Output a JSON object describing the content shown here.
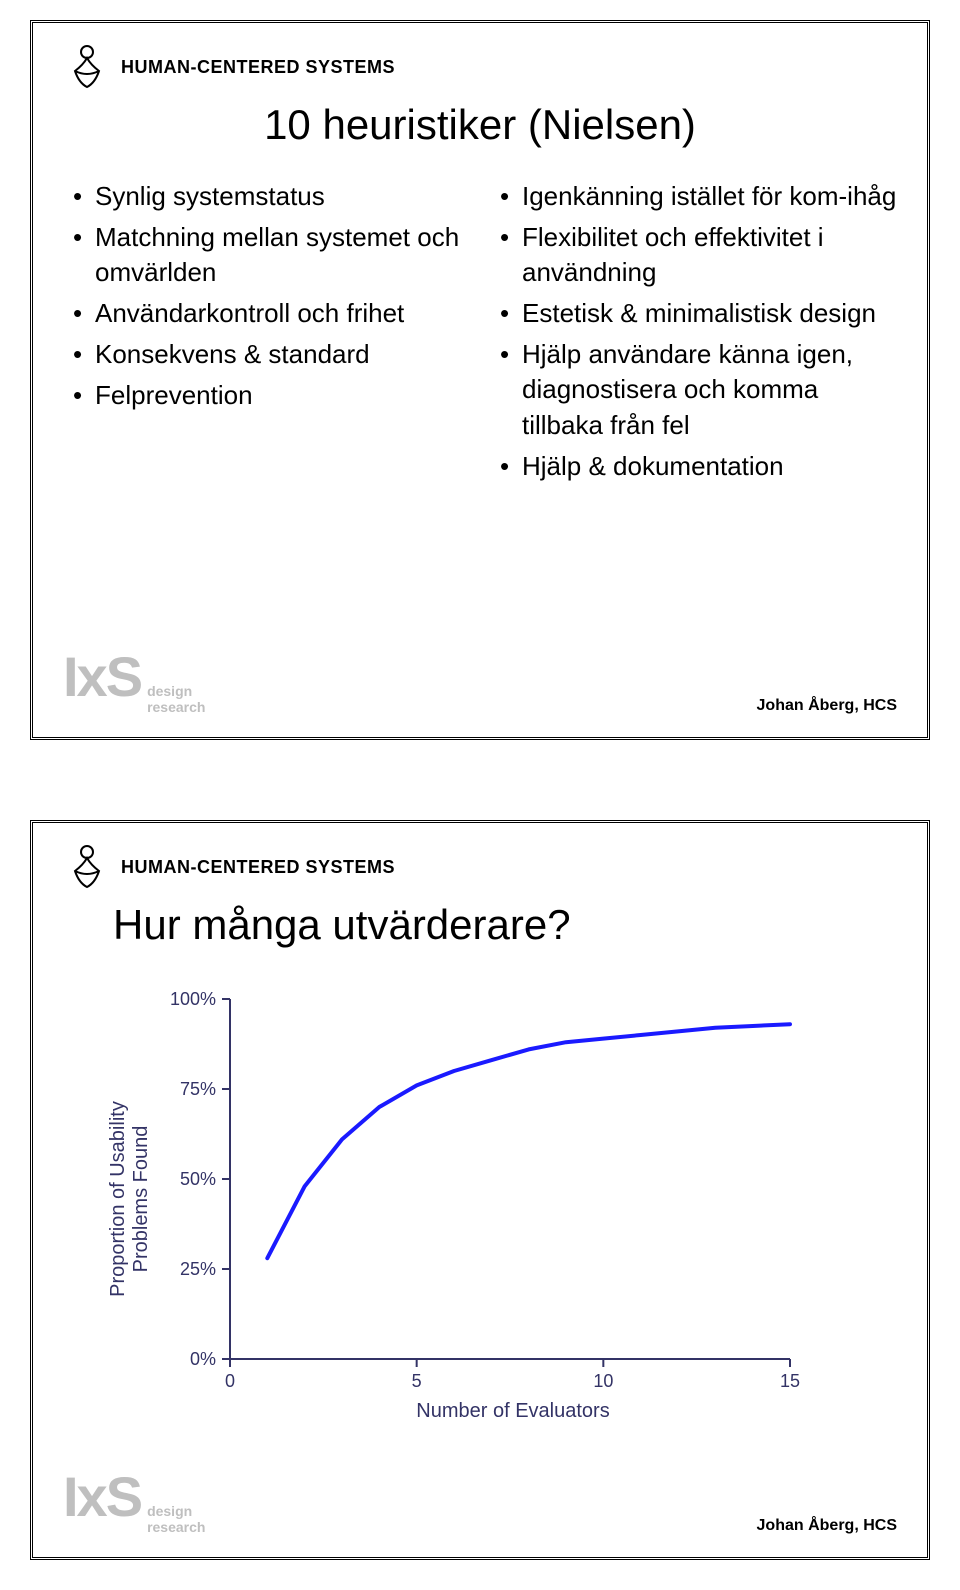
{
  "header_label": "HUMAN-CENTERED SYSTEMS",
  "footer": {
    "ixs": "IxS",
    "sub1": "design",
    "sub2": "research",
    "author": "Johan Åberg, HCS"
  },
  "slide1": {
    "title": "10 heuristiker (Nielsen)",
    "left_bullets": [
      "Synlig systemstatus",
      "Matchning mellan systemet och omvärlden",
      "Användarkontroll och frihet",
      "Konsekvens & standard",
      "Felprevention"
    ],
    "right_bullets": [
      "Igenkänning istället för kom-ihåg",
      "Flexibilitet och effektivitet i användning",
      "Estetisk & minimalistisk design",
      "Hjälp användare känna igen, diagnostisera och komma tillbaka från fel",
      "Hjälp & dokumentation"
    ]
  },
  "slide2": {
    "title": "Hur många utvärderare?",
    "chart": {
      "type": "line",
      "x_label": "Number of Evaluators",
      "y_label_line1": "Proportion of Usability",
      "y_label_line2": "Problems Found",
      "xlim": [
        0,
        15
      ],
      "ylim": [
        0,
        100
      ],
      "x_ticks": [
        0,
        5,
        10,
        15
      ],
      "y_ticks": [
        {
          "v": 0,
          "label": "0%"
        },
        {
          "v": 25,
          "label": "25%"
        },
        {
          "v": 50,
          "label": "50%"
        },
        {
          "v": 75,
          "label": "75%"
        },
        {
          "v": 100,
          "label": "100%"
        }
      ],
      "line_color": "#1a1aff",
      "line_width": 4,
      "axis_color": "#333366",
      "tick_color": "#333366",
      "background_color": "#ffffff",
      "points": [
        {
          "x": 1,
          "y": 28
        },
        {
          "x": 2,
          "y": 48
        },
        {
          "x": 3,
          "y": 61
        },
        {
          "x": 4,
          "y": 70
        },
        {
          "x": 5,
          "y": 76
        },
        {
          "x": 6,
          "y": 80
        },
        {
          "x": 7,
          "y": 83
        },
        {
          "x": 8,
          "y": 86
        },
        {
          "x": 9,
          "y": 88
        },
        {
          "x": 10,
          "y": 89
        },
        {
          "x": 11,
          "y": 90
        },
        {
          "x": 12,
          "y": 91
        },
        {
          "x": 13,
          "y": 92
        },
        {
          "x": 14,
          "y": 92.5
        },
        {
          "x": 15,
          "y": 93
        }
      ]
    }
  }
}
